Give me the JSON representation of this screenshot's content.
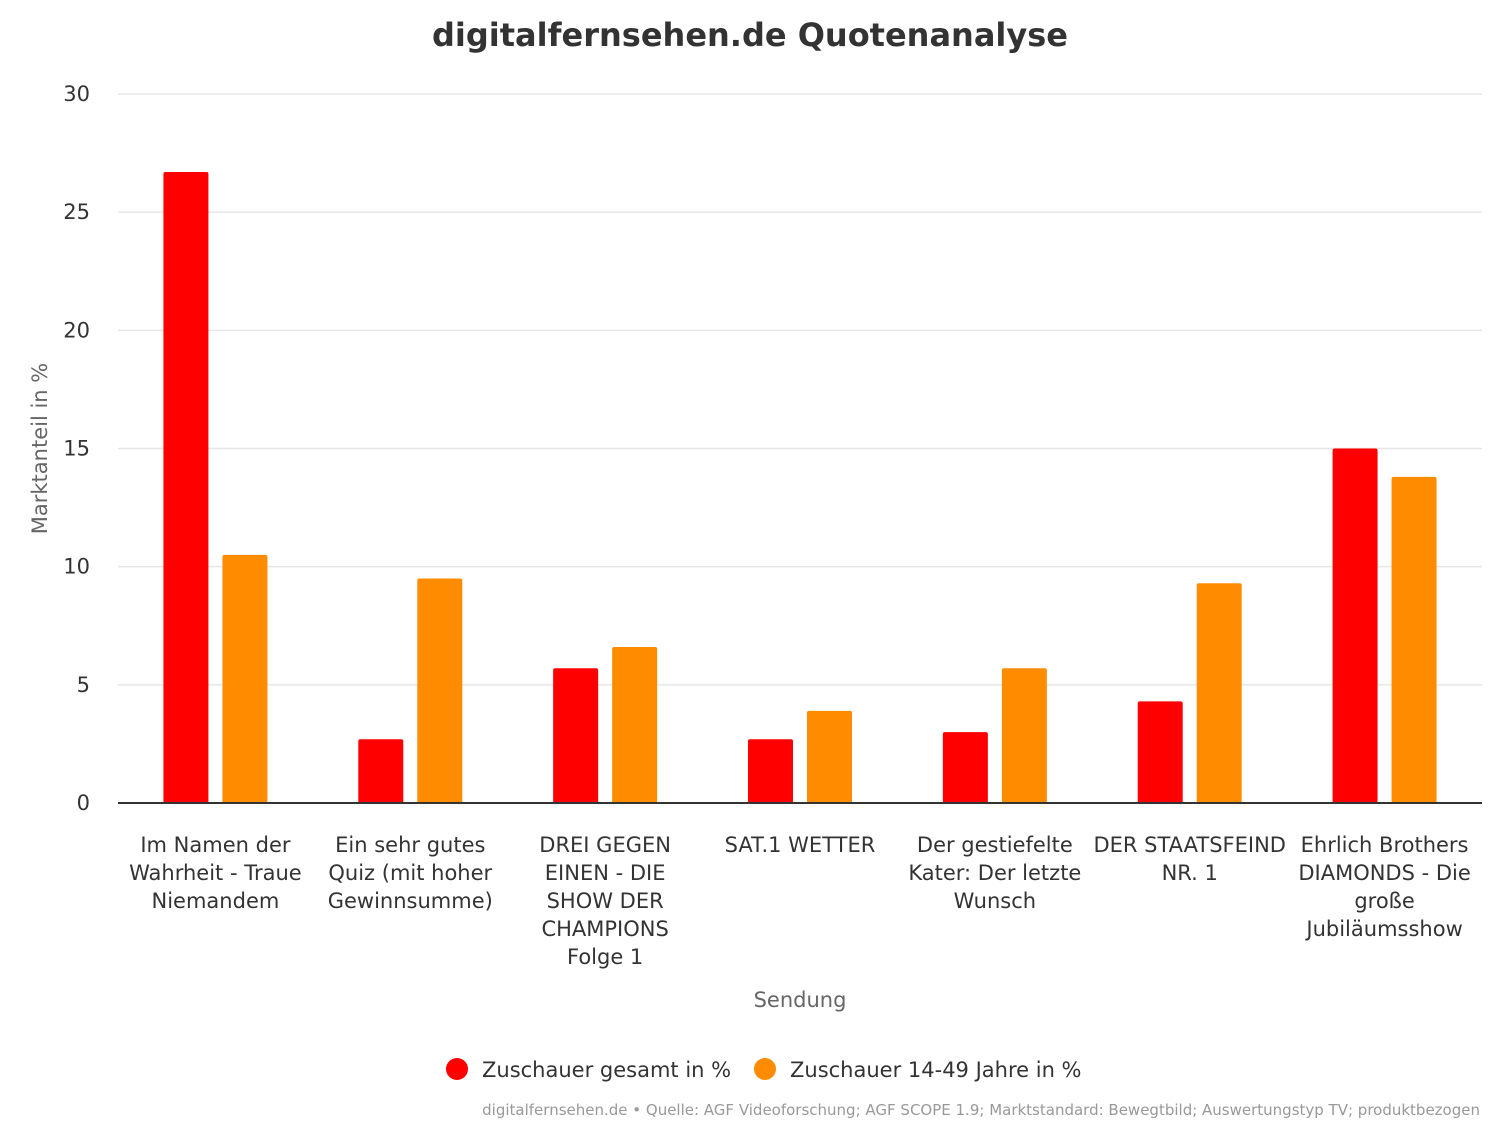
{
  "chart_data": {
    "type": "bar",
    "title": "digitalfernsehen.de Quotenanalyse",
    "xlabel": "Sendung",
    "ylabel": "Marktanteil in %",
    "ylim": [
      0,
      30
    ],
    "yticks": [
      0,
      5,
      10,
      15,
      20,
      25,
      30
    ],
    "categories": [
      "Im Namen der Wahrheit - Traue Niemandem",
      "Ein sehr gutes Quiz (mit hoher Gewinnsumme)",
      "DREI GEGEN EINEN - DIE SHOW DER CHAMPIONS Folge 1",
      "SAT.1 WETTER",
      "Der gestiefelte Kater: Der letzte Wunsch",
      "DER STAATSFEIND NR. 1",
      "Ehrlich Brothers DIAMONDS - Die große Jubiläumsshow"
    ],
    "category_lines": [
      [
        "Im Namen der",
        "Wahrheit - Traue",
        "Niemandem"
      ],
      [
        "Ein sehr gutes",
        "Quiz (mit hoher",
        "Gewinnsumme)"
      ],
      [
        "DREI GEGEN",
        "EINEN - DIE",
        "SHOW DER",
        "CHAMPIONS",
        "Folge 1"
      ],
      [
        "SAT.1 WETTER"
      ],
      [
        "Der gestiefelte",
        "Kater: Der letzte",
        "Wunsch"
      ],
      [
        "DER STAATSFEIND",
        "NR. 1"
      ],
      [
        "Ehrlich Brothers",
        "DIAMONDS - Die",
        "große",
        "Jubiläumsshow"
      ]
    ],
    "series": [
      {
        "name": "Zuschauer gesamt in %",
        "color": "#ff0000",
        "values": [
          26.7,
          2.7,
          5.7,
          2.7,
          3.0,
          4.3,
          15.0
        ]
      },
      {
        "name": "Zuschauer 14-49 Jahre in %",
        "color": "#ff8c00",
        "values": [
          10.5,
          9.5,
          6.6,
          3.9,
          5.7,
          9.3,
          13.8
        ]
      }
    ],
    "grid": true,
    "legend_position": "bottom-center",
    "credits": "digitalfernsehen.de • Quelle: AGF Videoforschung; AGF SCOPE 1.9; Marktstandard: Bewegtbild; Auswertungstyp TV; produktbezogen"
  }
}
